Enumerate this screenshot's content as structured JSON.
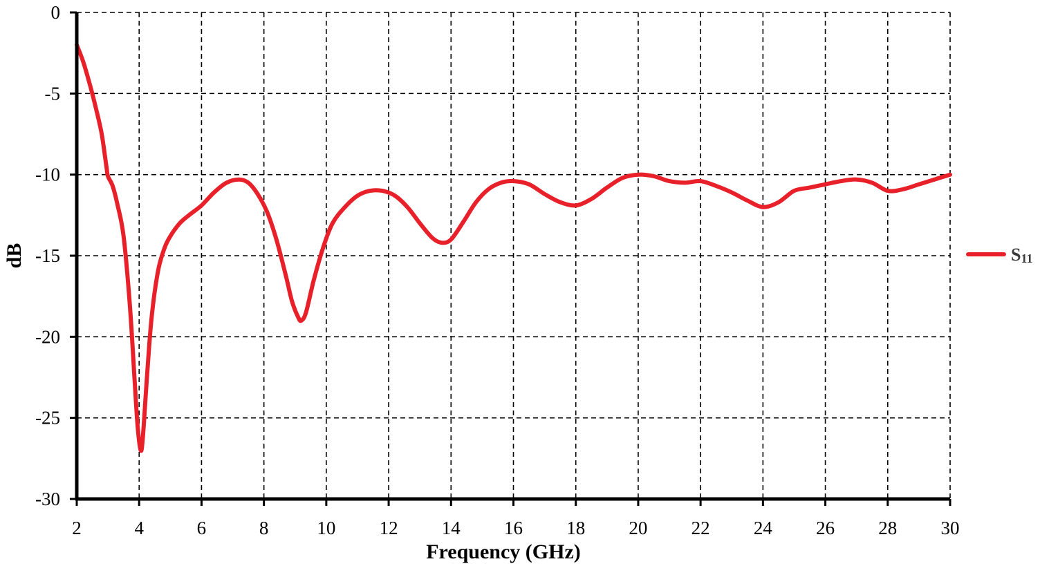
{
  "chart_data": {
    "type": "line",
    "title": "",
    "xlabel": "Frequency (GHz)",
    "ylabel": "dB",
    "xlim": [
      2,
      30
    ],
    "ylim": [
      -30,
      0
    ],
    "xticks": [
      2,
      4,
      6,
      8,
      10,
      12,
      14,
      16,
      18,
      20,
      22,
      24,
      26,
      28,
      30
    ],
    "yticks": [
      0,
      -5,
      -10,
      -15,
      -20,
      -25,
      -30
    ],
    "grid": true,
    "legend_position": "right",
    "series": [
      {
        "name": "S",
        "name_subscript": "11",
        "color": "#e8202a",
        "x": [
          2.0,
          2.2,
          2.4,
          2.6,
          2.8,
          2.95,
          3.0,
          3.15,
          3.3,
          3.5,
          3.7,
          3.85,
          3.95,
          4.05,
          4.12,
          4.25,
          4.4,
          4.6,
          4.8,
          5.0,
          5.3,
          5.6,
          6.0,
          6.4,
          6.8,
          7.2,
          7.5,
          7.8,
          8.1,
          8.4,
          8.7,
          8.9,
          9.1,
          9.2,
          9.35,
          9.6,
          9.9,
          10.2,
          10.6,
          11.0,
          11.4,
          11.8,
          12.2,
          12.6,
          13.0,
          13.4,
          13.7,
          14.0,
          14.4,
          14.8,
          15.2,
          15.6,
          16.0,
          16.5,
          17.0,
          17.5,
          18.0,
          18.5,
          19.0,
          19.5,
          20.0,
          20.5,
          21.0,
          21.5,
          22.0,
          22.5,
          23.0,
          23.5,
          24.0,
          24.5,
          25.0,
          25.5,
          26.0,
          26.5,
          27.0,
          27.5,
          28.0,
          28.5,
          29.0,
          29.5,
          30.0
        ],
        "values": [
          -2.0,
          -3.0,
          -4.3,
          -5.8,
          -7.5,
          -9.5,
          -10.1,
          -10.7,
          -11.8,
          -13.8,
          -18.0,
          -22.5,
          -25.5,
          -27.0,
          -26.2,
          -22.5,
          -18.8,
          -16.0,
          -14.6,
          -13.8,
          -13.0,
          -12.5,
          -11.9,
          -11.1,
          -10.5,
          -10.3,
          -10.5,
          -11.2,
          -12.3,
          -14.0,
          -16.2,
          -17.8,
          -18.8,
          -19.0,
          -18.5,
          -16.5,
          -14.5,
          -13.0,
          -12.0,
          -11.3,
          -11.0,
          -11.0,
          -11.3,
          -12.0,
          -13.0,
          -13.9,
          -14.2,
          -14.0,
          -12.9,
          -11.7,
          -10.9,
          -10.5,
          -10.4,
          -10.6,
          -11.2,
          -11.7,
          -11.9,
          -11.5,
          -10.8,
          -10.2,
          -10.0,
          -10.1,
          -10.4,
          -10.5,
          -10.4,
          -10.7,
          -11.1,
          -11.6,
          -12.0,
          -11.7,
          -11.0,
          -10.8,
          -10.6,
          -10.4,
          -10.3,
          -10.5,
          -11.0,
          -10.9,
          -10.6,
          -10.3,
          -10.0
        ]
      }
    ]
  }
}
